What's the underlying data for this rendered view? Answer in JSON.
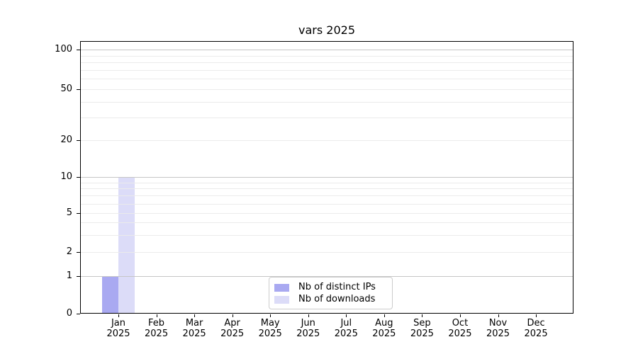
{
  "title": "vars 2025",
  "legend": {
    "items": [
      {
        "label": "Nb of distinct IPs",
        "color": "#a9a9f1"
      },
      {
        "label": "Nb of downloads",
        "color": "#dcdcf8"
      }
    ]
  },
  "chart_data": {
    "type": "bar",
    "title": "vars 2025",
    "categories": [
      "Jan",
      "Feb",
      "Mar",
      "Apr",
      "May",
      "Jun",
      "Jul",
      "Aug",
      "Sep",
      "Oct",
      "Nov",
      "Dec"
    ],
    "category_year": "2025",
    "series": [
      {
        "name": "Nb of distinct IPs",
        "color": "#a9a9f1",
        "values": [
          1,
          0,
          0,
          0,
          0,
          0,
          0,
          0,
          0,
          0,
          0,
          0
        ]
      },
      {
        "name": "Nb of downloads",
        "color": "#dcdcf8",
        "values": [
          10,
          0,
          0,
          0,
          0,
          0,
          0,
          0,
          0,
          0,
          0,
          0
        ]
      }
    ],
    "xlabel": "",
    "ylabel": "",
    "yscale": "log-like with 0 baseline",
    "ylim": [
      0,
      120
    ],
    "yticks_labeled": [
      0,
      1,
      2,
      5,
      10,
      20,
      50,
      100
    ],
    "ygrid_major": [
      1,
      10,
      100
    ],
    "ygrid_minor": [
      2,
      3,
      4,
      6,
      7,
      8,
      9,
      5,
      20,
      30,
      40,
      50,
      60,
      70,
      80,
      90
    ],
    "grid": "horizontal, major and minor",
    "legend_position": "lower center"
  },
  "colors": {
    "background": "#ffffff",
    "axis": "#000000",
    "major_grid": "#c6c6c6",
    "minor_grid": "#ebebeb",
    "bar_distinct_ips": "#a9a9f1",
    "bar_downloads": "#dcdcf8"
  }
}
